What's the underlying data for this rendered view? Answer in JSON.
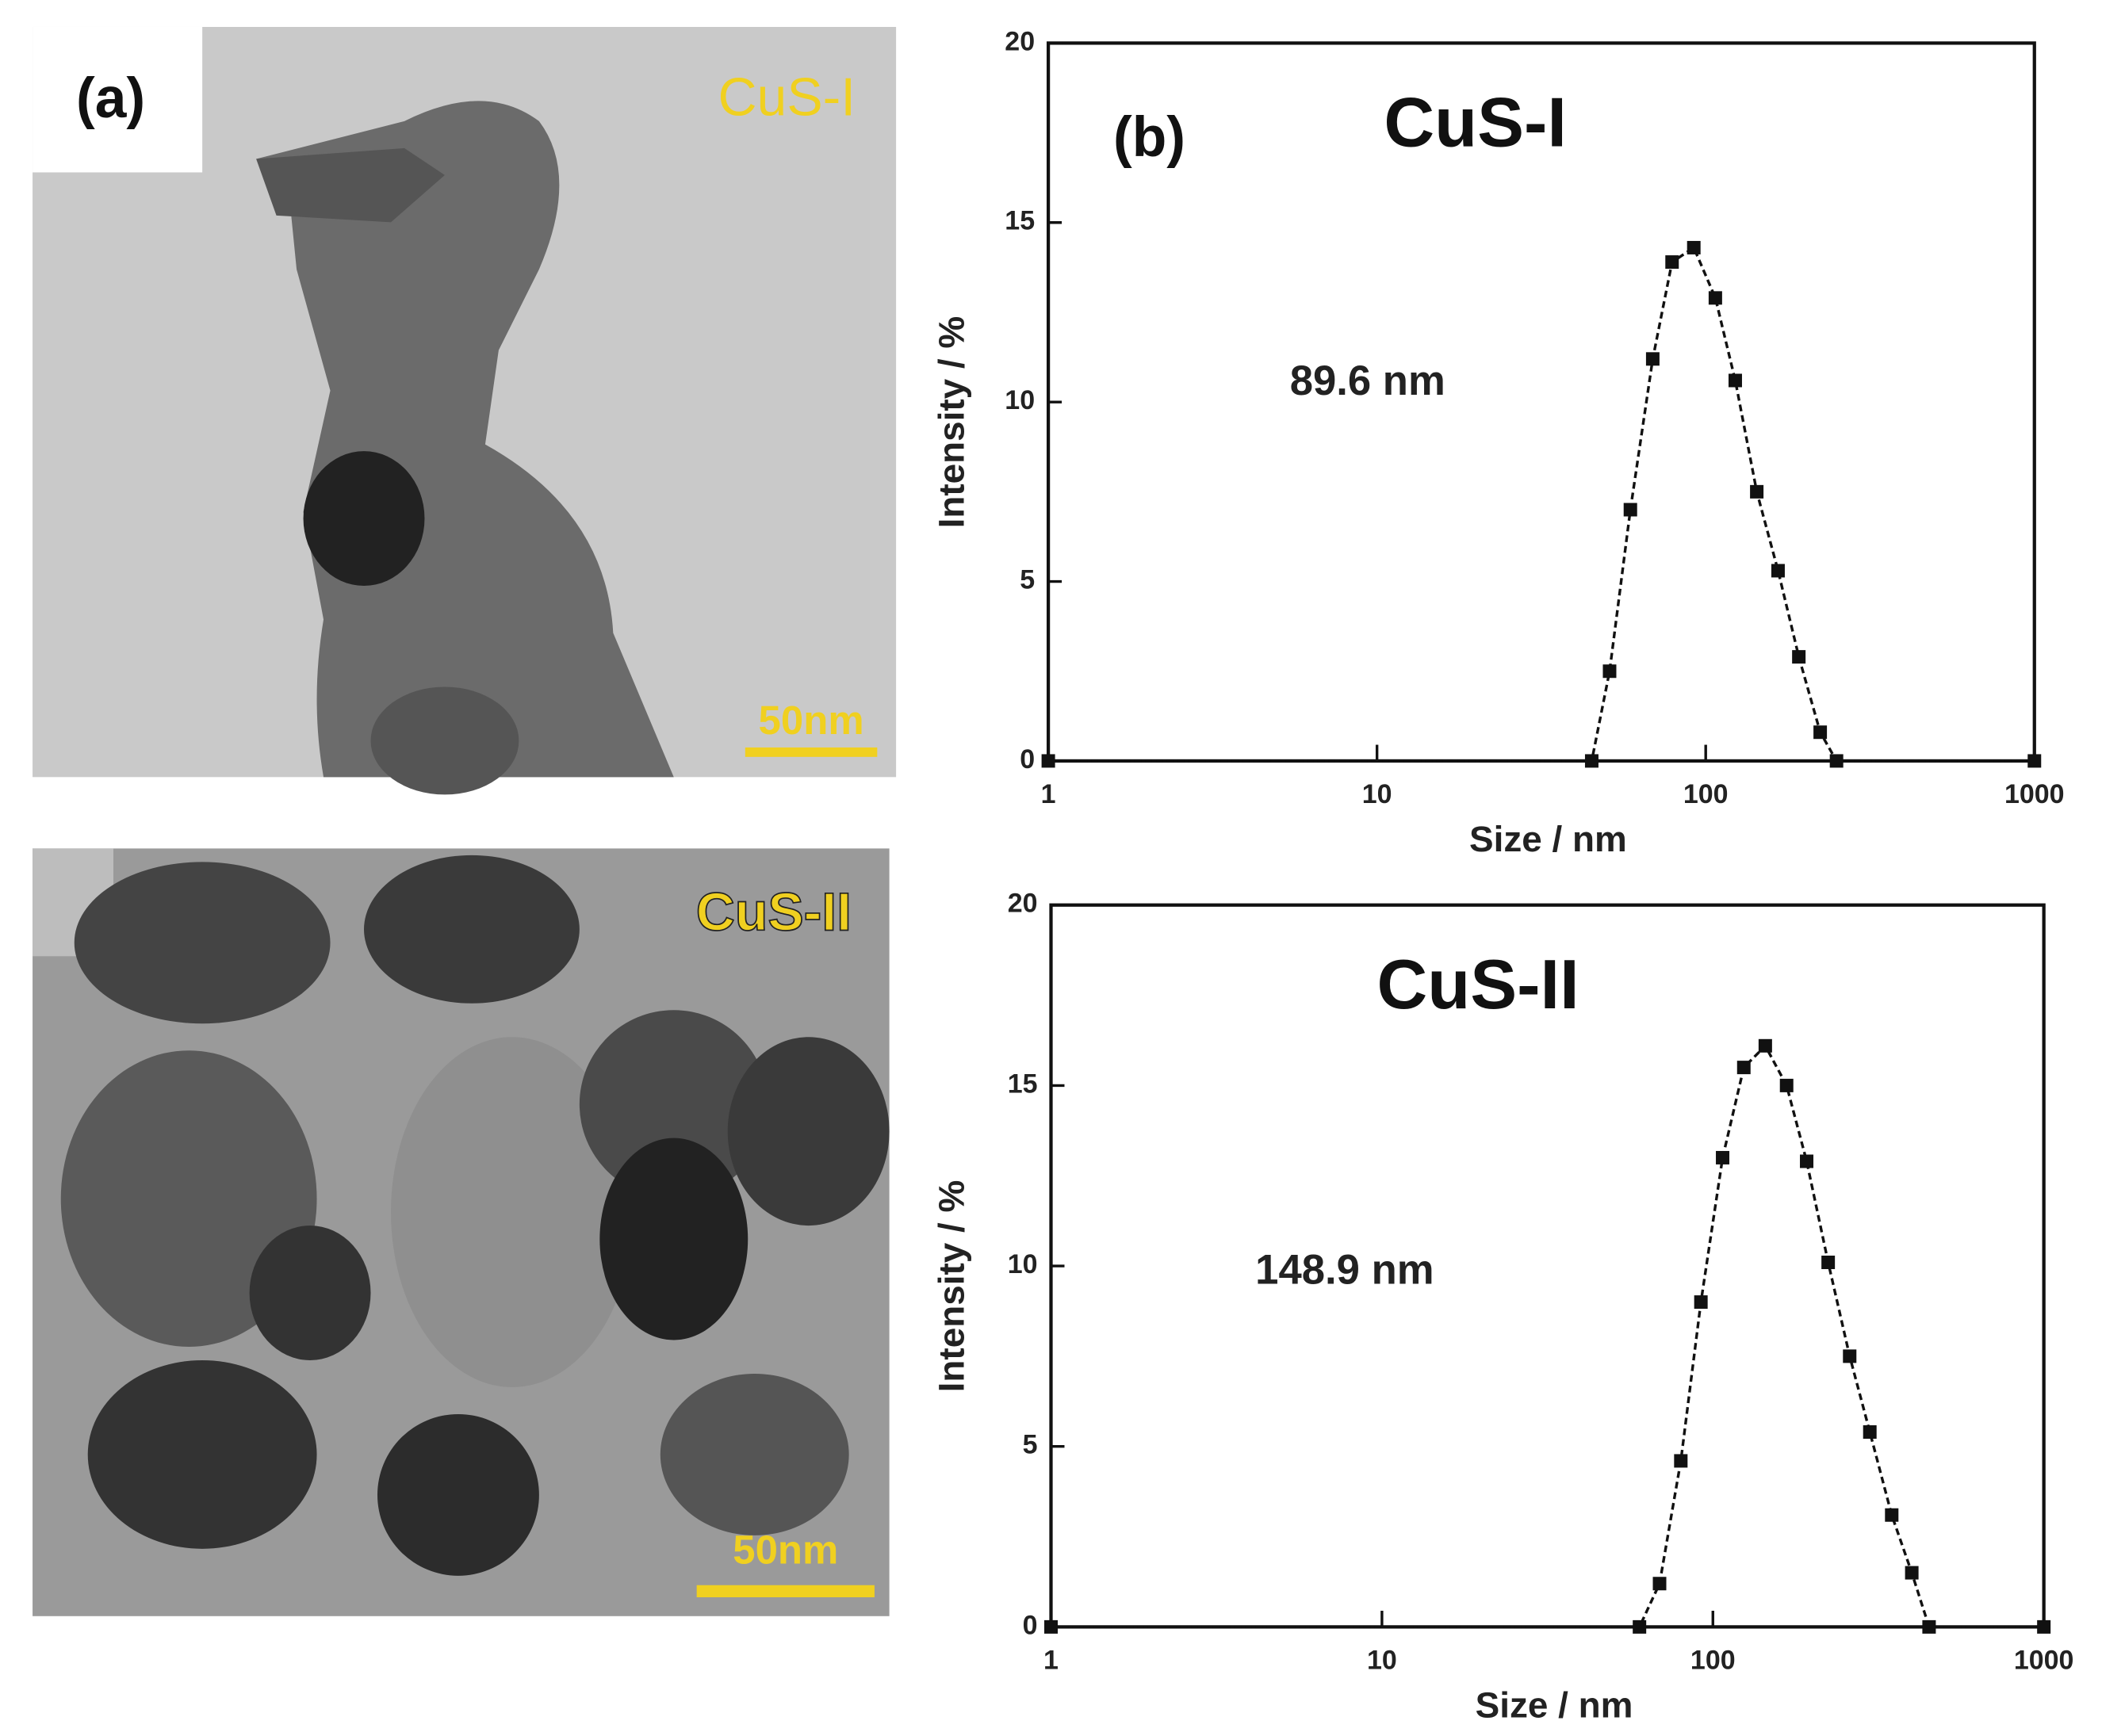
{
  "panel_a": {
    "label": "(a)",
    "images": [
      {
        "label": "CuS-I",
        "scale_bar": "50nm"
      },
      {
        "label": "CuS-II",
        "scale_bar": "50nm"
      }
    ]
  },
  "panel_b_label": "(b)",
  "chart_data": [
    {
      "type": "line",
      "title": "CuS-I",
      "annotation": "89.6 nm",
      "x_label": "Size / nm",
      "y_label": "Intensity / %",
      "xscale": "log",
      "xlim": [
        1,
        1000
      ],
      "xticks": [
        1,
        10,
        100,
        1000
      ],
      "ylim": [
        0,
        20
      ],
      "yticks": [
        0,
        5,
        10,
        15,
        20
      ],
      "series": [
        {
          "color": "#111111",
          "x": [
            1,
            45,
            51,
            59,
            69,
            79,
            92,
            107,
            123,
            143,
            166,
            192,
            223,
            250,
            1000
          ],
          "values": [
            0,
            0,
            2.5,
            7,
            11.2,
            13.9,
            14.3,
            12.9,
            10.6,
            7.5,
            5.3,
            2.9,
            0.8,
            0,
            0
          ]
        }
      ]
    },
    {
      "type": "line",
      "title": "CuS-II",
      "annotation": "148.9 nm",
      "x_label": "Size / nm",
      "y_label": "Intensity / %",
      "xscale": "log",
      "xlim": [
        1,
        1000
      ],
      "xticks": [
        1,
        10,
        100,
        1000
      ],
      "ylim": [
        0,
        20
      ],
      "yticks": [
        0,
        5,
        10,
        15,
        20
      ],
      "series": [
        {
          "color": "#111111",
          "x": [
            1,
            60,
            69,
            80,
            92,
            107,
            124,
            144,
            167,
            192,
            223,
            259,
            298,
            347,
            399,
            450,
            1000
          ],
          "values": [
            0,
            0,
            1.2,
            4.6,
            9,
            13,
            15.5,
            16.1,
            15,
            12.9,
            10.1,
            7.5,
            5.4,
            3.1,
            1.5,
            0,
            0
          ]
        }
      ]
    }
  ]
}
